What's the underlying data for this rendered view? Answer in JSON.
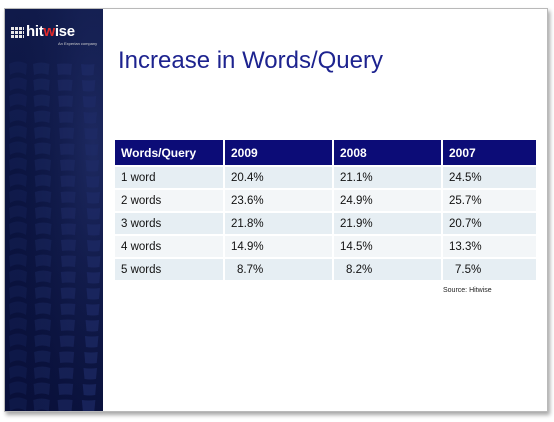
{
  "brand": {
    "logo_prefix": "hit",
    "logo_accent": "w",
    "logo_suffix": "ise",
    "tagline": "An Experian company",
    "sidebar_color": "#0b1440",
    "accent_color": "#e32b2b"
  },
  "slide": {
    "title": "Increase in Words/Query",
    "title_color": "#1d238f",
    "source": "Source: Hitwise"
  },
  "table": {
    "header_color": "#0c0c77",
    "headers": [
      "Words/Query",
      "2009",
      "2008",
      "2007"
    ],
    "rows": [
      [
        "1 word",
        "20.4%",
        "21.1%",
        "24.5%"
      ],
      [
        "2 words",
        "23.6%",
        "24.9%",
        "25.7%"
      ],
      [
        "3 words",
        "21.8%",
        "21.9%",
        "20.7%"
      ],
      [
        "4 words",
        "14.9%",
        "14.5%",
        "13.3%"
      ],
      [
        "5 words",
        "8.7%",
        "8.2%",
        "7.5%"
      ]
    ]
  }
}
